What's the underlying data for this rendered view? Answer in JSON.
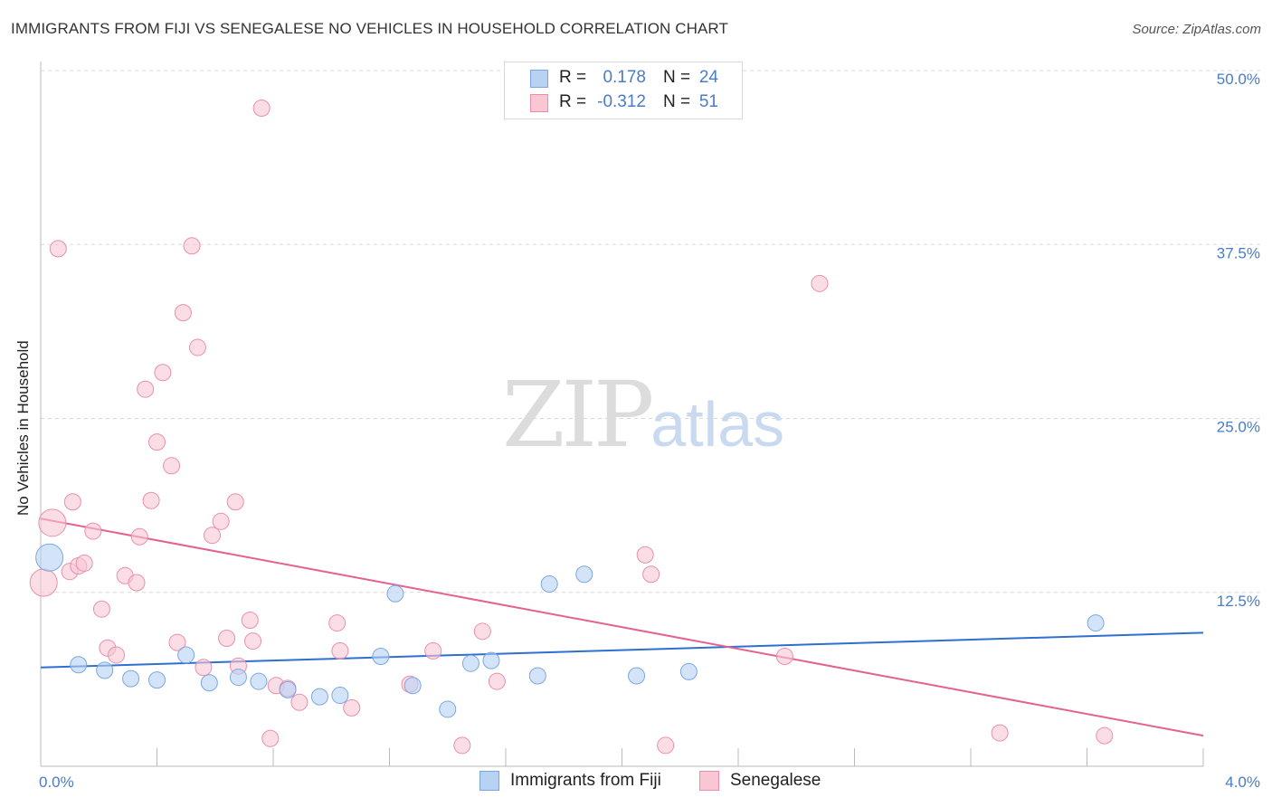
{
  "title": "IMMIGRANTS FROM FIJI VS SENEGALESE NO VEHICLES IN HOUSEHOLD CORRELATION CHART",
  "source": "Source: ZipAtlas.com",
  "watermark": {
    "zip": "ZIP",
    "atlas": "atlas"
  },
  "colors": {
    "fiji_fill": "#b8d2f4",
    "fiji_stroke": "#7aa7e0",
    "fiji_line": "#2f6fd0",
    "sen_fill": "#f9c6d4",
    "sen_stroke": "#ea8fab",
    "sen_line": "#e4628f",
    "grid": "#d9d9d9",
    "axis_text": "#4a7cc7"
  },
  "legend_top": [
    {
      "r_label": "R =",
      "r_value": "0.178",
      "n_label": "N =",
      "n_value": "24"
    },
    {
      "r_label": "R =",
      "r_value": "-0.312",
      "n_label": "N =",
      "n_value": "51"
    }
  ],
  "legend_bottom": [
    "Immigrants from Fiji",
    "Senegalese"
  ],
  "chart_data": {
    "type": "scatter",
    "title": "IMMIGRANTS FROM FIJI VS SENEGALESE NO VEHICLES IN HOUSEHOLD CORRELATION CHART",
    "xlabel": "",
    "ylabel": "No Vehicles in Household",
    "xlim": [
      0.0,
      4.0
    ],
    "ylim": [
      0.0,
      50.0
    ],
    "x_tick_labels": [
      "0.0%",
      "4.0%"
    ],
    "y_ticks": [
      12.5,
      25.0,
      37.5,
      50.0
    ],
    "y_tick_labels": [
      "12.5%",
      "25.0%",
      "37.5%",
      "50.0%"
    ],
    "grid": true,
    "legend_placement": "top-center",
    "series": [
      {
        "name": "Immigrants from Fiji",
        "r": 0.178,
        "n": 24,
        "points": [
          [
            0.03,
            15.0,
            "large"
          ],
          [
            0.13,
            7.3
          ],
          [
            0.22,
            6.9
          ],
          [
            0.31,
            6.3
          ],
          [
            0.4,
            6.2
          ],
          [
            0.5,
            8.0
          ],
          [
            0.58,
            6.0
          ],
          [
            0.68,
            6.4
          ],
          [
            0.75,
            6.1
          ],
          [
            0.85,
            5.5
          ],
          [
            0.96,
            5.0
          ],
          [
            1.03,
            5.1
          ],
          [
            1.17,
            7.9
          ],
          [
            1.22,
            12.4
          ],
          [
            1.28,
            5.8
          ],
          [
            1.4,
            4.1
          ],
          [
            1.48,
            7.4
          ],
          [
            1.55,
            7.6
          ],
          [
            1.71,
            6.5
          ],
          [
            1.75,
            13.1
          ],
          [
            1.87,
            13.8
          ],
          [
            2.05,
            6.5
          ],
          [
            2.23,
            6.8
          ],
          [
            3.63,
            10.3
          ]
        ],
        "trend": [
          [
            0.0,
            7.1
          ],
          [
            4.0,
            9.6
          ]
        ]
      },
      {
        "name": "Senegalese",
        "r": -0.312,
        "n": 51,
        "points": [
          [
            0.01,
            13.2,
            "large"
          ],
          [
            0.04,
            17.5,
            "large"
          ],
          [
            0.06,
            37.2
          ],
          [
            0.1,
            14.0
          ],
          [
            0.11,
            19.0
          ],
          [
            0.13,
            14.4
          ],
          [
            0.15,
            14.6
          ],
          [
            0.18,
            16.9
          ],
          [
            0.21,
            11.3
          ],
          [
            0.23,
            8.5
          ],
          [
            0.26,
            8.0
          ],
          [
            0.29,
            13.7
          ],
          [
            0.33,
            13.2
          ],
          [
            0.34,
            16.5
          ],
          [
            0.36,
            27.1
          ],
          [
            0.38,
            19.1
          ],
          [
            0.4,
            23.3
          ],
          [
            0.42,
            28.3
          ],
          [
            0.45,
            21.6
          ],
          [
            0.47,
            8.9
          ],
          [
            0.49,
            32.6
          ],
          [
            0.52,
            37.4
          ],
          [
            0.54,
            30.1
          ],
          [
            0.56,
            7.1
          ],
          [
            0.59,
            16.6
          ],
          [
            0.62,
            17.6
          ],
          [
            0.64,
            9.2
          ],
          [
            0.67,
            19.0
          ],
          [
            0.68,
            7.2
          ],
          [
            0.72,
            10.5
          ],
          [
            0.73,
            9.0
          ],
          [
            0.76,
            47.3
          ],
          [
            0.79,
            2.0
          ],
          [
            0.81,
            5.8
          ],
          [
            0.85,
            5.6
          ],
          [
            0.89,
            4.6
          ],
          [
            1.02,
            10.3
          ],
          [
            1.03,
            8.3
          ],
          [
            1.07,
            4.2
          ],
          [
            1.27,
            5.9
          ],
          [
            1.35,
            8.3
          ],
          [
            1.45,
            1.5
          ],
          [
            1.52,
            9.7
          ],
          [
            1.57,
            6.1
          ],
          [
            2.08,
            15.2
          ],
          [
            2.1,
            13.8
          ],
          [
            2.15,
            1.5
          ],
          [
            2.56,
            7.9
          ],
          [
            2.68,
            34.7
          ],
          [
            3.3,
            2.4
          ],
          [
            3.66,
            2.2
          ]
        ],
        "trend": [
          [
            0.0,
            17.8
          ],
          [
            4.0,
            2.2
          ]
        ]
      }
    ]
  }
}
